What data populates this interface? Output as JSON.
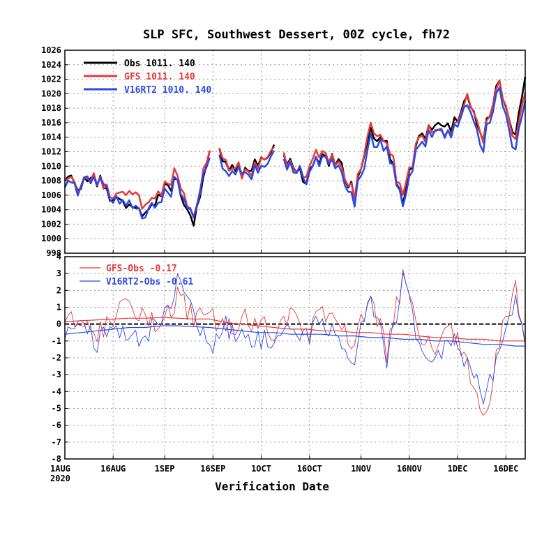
{
  "chart_data": [
    {
      "type": "line",
      "title": "SLP SFC, Southwest Dessert, 00Z cycle, fh72",
      "ylim": [
        998,
        1026
      ],
      "yticks": [
        998,
        1000,
        1002,
        1004,
        1006,
        1008,
        1010,
        1012,
        1014,
        1016,
        1018,
        1020,
        1022,
        1024,
        1026
      ],
      "grid": true,
      "legend_position": "top-left",
      "legend": [
        {
          "label": "Obs",
          "mean": "1011.",
          "count": "140",
          "color": "#000000"
        },
        {
          "label": "GFS",
          "mean": "1011.",
          "count": "140",
          "color": "#e8393b"
        },
        {
          "label": "V16RT2",
          "mean": "1010.",
          "count": "140",
          "color": "#2948e8"
        }
      ],
      "x_dates": [
        "2020-08-01",
        "2020-08-06",
        "2020-08-11",
        "2020-08-16",
        "2020-08-21",
        "2020-08-26",
        "2020-08-31",
        "2020-09-05",
        "2020-09-10",
        "2020-09-15",
        "2020-09-20",
        "2020-09-25",
        "2020-09-30",
        "2020-10-05",
        "2020-10-10",
        "2020-10-15",
        "2020-10-20",
        "2020-10-25",
        "2020-10-30",
        "2020-11-04",
        "2020-11-09",
        "2020-11-14",
        "2020-11-19",
        "2020-11-24",
        "2020-11-29",
        "2020-12-04",
        "2020-12-09",
        "2020-12-14",
        "2020-12-19",
        "2020-12-22"
      ],
      "series": [
        {
          "name": "Obs",
          "color": "#000000",
          "values": [
            1008,
            1007,
            1008,
            1006,
            1004,
            1003,
            1006,
            1008,
            1001,
            1013,
            1011,
            1009,
            1010,
            1012,
            1010,
            1008,
            1012,
            1010,
            1006,
            1015,
            1013,
            1005,
            1014,
            1016,
            1015,
            1019,
            1014,
            1022,
            1014,
            1023
          ]
        },
        {
          "name": "GFS",
          "color": "#e8393b",
          "values": [
            1008,
            1007,
            1008,
            1006,
            1006,
            1004,
            1006,
            1009,
            1002,
            1013,
            1011,
            1009,
            1010,
            1012,
            1010,
            1009,
            1013,
            1010,
            1006,
            1016,
            1013,
            1006,
            1014,
            1015,
            1014,
            1019,
            1014,
            1022,
            1013,
            1021
          ]
        },
        {
          "name": "V16RT2",
          "color": "#2948e8",
          "values": [
            1007,
            1007,
            1008,
            1006,
            1004,
            1003,
            1005,
            1008,
            1002,
            1012,
            1010,
            1009,
            1009,
            1011,
            1010,
            1008,
            1012,
            1009,
            1005,
            1014,
            1012,
            1005,
            1013,
            1015,
            1014,
            1018,
            1013,
            1021,
            1012,
            1020
          ]
        }
      ]
    },
    {
      "type": "line",
      "xlabel": "Verification Date",
      "ylim": [
        -8,
        4
      ],
      "yticks": [
        -8,
        -7,
        -6,
        -5,
        -4,
        -3,
        -2,
        -1,
        0,
        1,
        2,
        3,
        4
      ],
      "xticks": [
        "1AUG",
        "16AUG",
        "1SEP",
        "16SEP",
        "1OCT",
        "16OCT",
        "1NOV",
        "16NOV",
        "1DEC",
        "16DEC"
      ],
      "year_label": "2020",
      "grid": true,
      "legend_position": "top-left",
      "legend": [
        {
          "label": "GFS-Obs",
          "value": "-0.17",
          "color": "#e8393b"
        },
        {
          "label": "V16RT2-Obs",
          "value": "-0.61",
          "color": "#2948e8"
        }
      ],
      "x_dates": [
        "2020-08-01",
        "2020-08-06",
        "2020-08-11",
        "2020-08-16",
        "2020-08-21",
        "2020-08-26",
        "2020-08-31",
        "2020-09-05",
        "2020-09-10",
        "2020-09-15",
        "2020-09-20",
        "2020-09-25",
        "2020-09-30",
        "2020-10-05",
        "2020-10-10",
        "2020-10-15",
        "2020-10-20",
        "2020-10-25",
        "2020-10-30",
        "2020-11-04",
        "2020-11-09",
        "2020-11-14",
        "2020-11-19",
        "2020-11-24",
        "2020-11-29",
        "2020-12-04",
        "2020-12-09",
        "2020-12-14",
        "2020-12-19",
        "2020-12-22"
      ],
      "series": [
        {
          "name": "GFS-Obs",
          "color": "#e8393b",
          "values": [
            0.2,
            0.3,
            -0.5,
            0.5,
            1.0,
            0.4,
            -0.3,
            1.6,
            0.3,
            0.4,
            -0.4,
            0.3,
            0.0,
            -0.4,
            0.5,
            -0.6,
            0.8,
            0.5,
            -1.5,
            2.0,
            -1.8,
            2.8,
            -0.8,
            -1.2,
            -0.6,
            -2.0,
            -6.1,
            -1.0,
            2.3,
            -0.8
          ]
        },
        {
          "name": "V16RT2-Obs",
          "color": "#2948e8",
          "values": [
            -0.8,
            -0.4,
            -1.0,
            0.3,
            -1.2,
            -0.5,
            0.2,
            2.4,
            0.5,
            -1.5,
            -0.2,
            -0.9,
            -0.7,
            -1.3,
            -0.4,
            -0.8,
            0.2,
            -0.6,
            -1.9,
            1.6,
            -2.0,
            2.6,
            -1.2,
            -2.3,
            -1.0,
            -2.2,
            -4.3,
            -1.8,
            2.0,
            -1.2
          ]
        },
        {
          "name": "GFS-Obs running mean",
          "color": "#e8393b",
          "values": [
            0.15,
            0.2,
            0.25,
            0.3,
            0.35,
            0.35,
            0.4,
            0.35,
            0.3,
            0.3,
            0.1,
            0.0,
            -0.1,
            -0.2,
            -0.3,
            -0.3,
            -0.4,
            -0.4,
            -0.5,
            -0.5,
            -0.6,
            -0.6,
            -0.7,
            -0.8,
            -0.8,
            -0.9,
            -0.9,
            -1.0,
            -1.0,
            -1.0
          ]
        },
        {
          "name": "V16RT2-Obs running mean",
          "color": "#2948e8",
          "values": [
            -0.6,
            -0.5,
            -0.4,
            -0.3,
            -0.2,
            -0.2,
            -0.1,
            -0.1,
            -0.15,
            -0.2,
            -0.3,
            -0.4,
            -0.5,
            -0.5,
            -0.6,
            -0.6,
            -0.6,
            -0.7,
            -0.7,
            -0.8,
            -0.8,
            -0.9,
            -0.9,
            -1.0,
            -1.0,
            -1.1,
            -1.2,
            -1.2,
            -1.3,
            -1.3
          ]
        }
      ]
    }
  ]
}
